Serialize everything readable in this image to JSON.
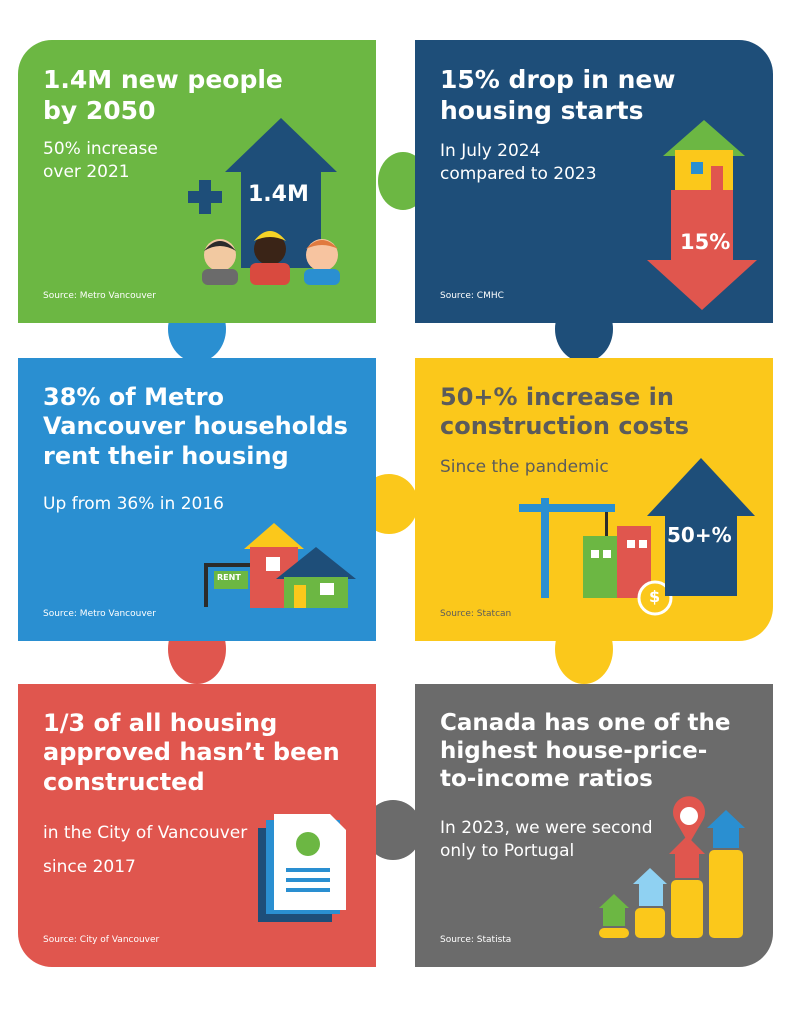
{
  "colors": {
    "green": "#6cb743",
    "navy": "#1e4e79",
    "blue": "#2a8fd1",
    "yellow": "#fbc81b",
    "red": "#e0564e",
    "grey": "#6b6b6b"
  },
  "tiles": [
    {
      "heading_lines": [
        "1.4M new people",
        "by 2050"
      ],
      "sub_lines": [
        "50% increase",
        "over 2021"
      ],
      "graphic_label": "1.4M",
      "source": "Source: Metro Vancouver",
      "icons": [
        "plus-icon",
        "house-arrow-icon",
        "people-icon"
      ]
    },
    {
      "heading_lines": [
        "15% drop in new",
        "housing starts"
      ],
      "sub_lines": [
        "In July 2024",
        "compared to 2023"
      ],
      "graphic_label": "15%",
      "source": "Source: CMHC",
      "icons": [
        "house-icon",
        "down-arrow-icon"
      ]
    },
    {
      "heading_lines": [
        "38% of Metro",
        "Vancouver households",
        "rent their housing"
      ],
      "sub_lines": [
        "Up from 36% in 2016"
      ],
      "graphic_label": "RENT",
      "source": "Source: Metro Vancouver",
      "icons": [
        "rent-sign-icon",
        "houses-icon"
      ]
    },
    {
      "heading_lines": [
        "50+% increase in",
        "construction costs"
      ],
      "sub_lines": [
        "Since the pandemic"
      ],
      "graphic_label": "50+%",
      "source": "Source: Statcan",
      "icons": [
        "crane-icon",
        "buildings-icon",
        "dollar-coin-icon",
        "up-arrow-icon"
      ]
    },
    {
      "heading_lines": [
        "1/3 of all housing",
        "approved hasn’t been",
        "constructed"
      ],
      "sub_lines": [
        "in the City of Vancouver",
        "since 2017"
      ],
      "source": "Source: City of Vancouver",
      "icons": [
        "document-approved-icon"
      ]
    },
    {
      "heading_lines": [
        "Canada has one of the",
        "highest house-price-",
        "to-income ratios"
      ],
      "sub_lines": [
        "In 2023, we were second",
        "only to Portugal"
      ],
      "source": "Source: Statista",
      "icons": [
        "coin-stacks-icon",
        "houses-icon",
        "canada-pin-icon"
      ]
    }
  ]
}
